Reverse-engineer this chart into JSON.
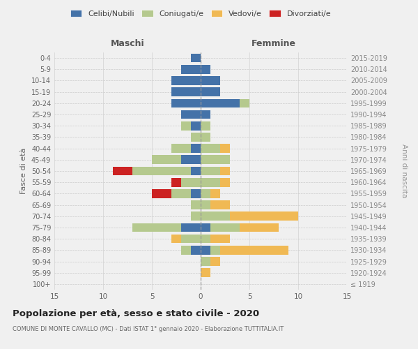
{
  "age_groups": [
    "100+",
    "95-99",
    "90-94",
    "85-89",
    "80-84",
    "75-79",
    "70-74",
    "65-69",
    "60-64",
    "55-59",
    "50-54",
    "45-49",
    "40-44",
    "35-39",
    "30-34",
    "25-29",
    "20-24",
    "15-19",
    "10-14",
    "5-9",
    "0-4"
  ],
  "birth_years": [
    "≤ 1919",
    "1920-1924",
    "1925-1929",
    "1930-1934",
    "1935-1939",
    "1940-1944",
    "1945-1949",
    "1950-1954",
    "1955-1959",
    "1960-1964",
    "1965-1969",
    "1970-1974",
    "1975-1979",
    "1980-1984",
    "1985-1989",
    "1990-1994",
    "1995-1999",
    "2000-2004",
    "2005-2009",
    "2010-2014",
    "2015-2019"
  ],
  "colors": {
    "celibi": "#4472a8",
    "coniugati": "#b5c98e",
    "vedovi": "#f0b954",
    "divorziati": "#cc2222"
  },
  "maschi": {
    "celibi": [
      0,
      0,
      0,
      1,
      0,
      2,
      0,
      0,
      1,
      0,
      1,
      2,
      1,
      0,
      1,
      2,
      3,
      3,
      3,
      2,
      1
    ],
    "coniugati": [
      0,
      0,
      0,
      1,
      2,
      5,
      1,
      1,
      2,
      2,
      6,
      3,
      2,
      1,
      1,
      0,
      0,
      0,
      0,
      0,
      0
    ],
    "vedovi": [
      0,
      0,
      0,
      0,
      1,
      0,
      0,
      0,
      0,
      0,
      0,
      0,
      0,
      0,
      0,
      0,
      0,
      0,
      0,
      0,
      0
    ],
    "divorziati": [
      0,
      0,
      0,
      0,
      0,
      0,
      0,
      0,
      2,
      1,
      2,
      0,
      0,
      0,
      0,
      0,
      0,
      0,
      0,
      0,
      0
    ]
  },
  "femmine": {
    "celibi": [
      0,
      0,
      0,
      1,
      0,
      1,
      0,
      0,
      0,
      0,
      0,
      0,
      0,
      0,
      0,
      1,
      4,
      2,
      2,
      1,
      0
    ],
    "coniugati": [
      0,
      0,
      1,
      1,
      1,
      3,
      3,
      1,
      1,
      2,
      2,
      3,
      2,
      1,
      1,
      0,
      1,
      0,
      0,
      0,
      0
    ],
    "vedovi": [
      0,
      1,
      1,
      7,
      2,
      4,
      7,
      2,
      1,
      1,
      1,
      0,
      1,
      0,
      0,
      0,
      0,
      0,
      0,
      0,
      0
    ],
    "divorziati": [
      0,
      0,
      0,
      0,
      0,
      0,
      0,
      0,
      0,
      0,
      0,
      0,
      0,
      0,
      0,
      0,
      0,
      0,
      0,
      0,
      0
    ]
  },
  "title": "Popolazione per età, sesso e stato civile - 2020",
  "subtitle": "COMUNE DI MONTE CAVALLO (MC) - Dati ISTAT 1° gennaio 2020 - Elaborazione TUTTITALIA.IT",
  "xlabel_maschi": "Maschi",
  "xlabel_femmine": "Femmine",
  "ylabel": "Fasce di età",
  "ylabel_right": "Anni di nascita",
  "xlim": 15,
  "bg_color": "#f0f0f0",
  "plot_bg": "#f0f0f0",
  "grid_color": "#ffffff",
  "legend_labels": [
    "Celibi/Nubili",
    "Coniugati/e",
    "Vedovi/e",
    "Divorziati/e"
  ]
}
